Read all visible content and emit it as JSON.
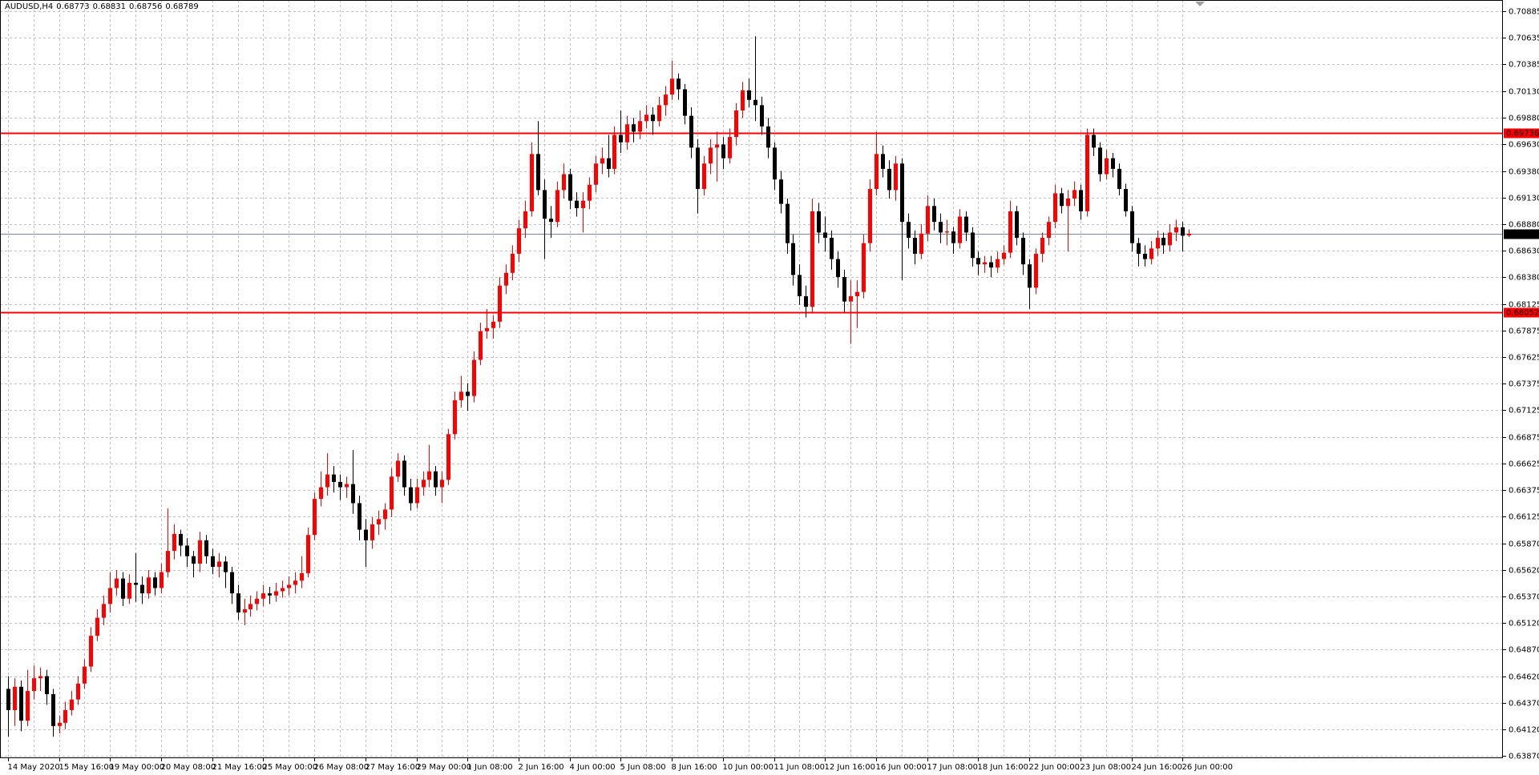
{
  "chart_data": {
    "type": "candlestick",
    "symbol": "AUDUSD,H4",
    "up_color": "#ff0000",
    "down_color": "#000000",
    "grid": true,
    "ylim": [
      0.63847,
      0.70991
    ],
    "yticks": [
      0.70885,
      0.70635,
      0.70385,
      {
        "value": 0.7013,
        "label": "0.70130"
      },
      {
        "value": 0.6988,
        "label": "0.69880"
      },
      {
        "value": 0.6963,
        "label": "0.69630"
      },
      {
        "value": 0.6938,
        "label": "0.69380"
      },
      {
        "value": 0.6913,
        "label": "0.69130"
      },
      {
        "value": 0.6888,
        "label": "0.68880"
      },
      {
        "value": 0.6863,
        "label": "0.68630"
      },
      {
        "value": 0.6838,
        "label": "0.68380"
      },
      0.68125,
      0.67875,
      0.67625,
      0.67375,
      0.67125,
      0.66875,
      0.66625,
      0.66375,
      0.66125,
      {
        "value": 0.6587,
        "label": "0.65870"
      },
      {
        "value": 0.6562,
        "label": "0.65620"
      },
      {
        "value": 0.6537,
        "label": "0.65370"
      },
      {
        "value": 0.6512,
        "label": "0.65120"
      },
      {
        "value": 0.6487,
        "label": "0.64870"
      },
      {
        "value": 0.6462,
        "label": "0.64620"
      },
      {
        "value": 0.6437,
        "label": "0.64370"
      },
      {
        "value": 0.6412,
        "label": "0.64120"
      },
      {
        "value": 0.6387,
        "label": "0.63870"
      }
    ],
    "hlines": [
      {
        "value": 0.69736,
        "color": "#ff0000"
      },
      {
        "value": 0.68052,
        "color": "#ff0000"
      }
    ],
    "last_price_color": "#778899",
    "categories": [
      "14 May 2020",
      null,
      null,
      null,
      null,
      null,
      null,
      null,
      "15 May 16:00",
      null,
      null,
      null,
      null,
      null,
      null,
      null,
      "19 May 00:00",
      null,
      null,
      null,
      null,
      null,
      null,
      null,
      "20 May 08:00",
      null,
      null,
      null,
      null,
      null,
      null,
      null,
      "21 May 16:00",
      null,
      null,
      null,
      null,
      null,
      null,
      null,
      "25 May 00:00",
      null,
      null,
      null,
      null,
      null,
      null,
      null,
      "26 May 08:00",
      null,
      null,
      null,
      null,
      null,
      null,
      null,
      "27 May 16:00",
      null,
      null,
      null,
      null,
      null,
      null,
      null,
      "29 May 00:00",
      null,
      null,
      null,
      null,
      null,
      null,
      null,
      "1 Jun 08:00",
      null,
      null,
      null,
      null,
      null,
      null,
      null,
      "2 Jun 16:00",
      null,
      null,
      null,
      null,
      null,
      null,
      null,
      "4 Jun 00:00",
      null,
      null,
      null,
      null,
      null,
      null,
      null,
      "5 Jun 08:00",
      null,
      null,
      null,
      null,
      null,
      null,
      null,
      "8 Jun 16:00",
      null,
      null,
      null,
      null,
      null,
      null,
      null,
      "10 Jun 00:00",
      null,
      null,
      null,
      null,
      null,
      null,
      null,
      "11 Jun 08:00",
      null,
      null,
      null,
      null,
      null,
      null,
      null,
      "12 Jun 16:00",
      null,
      null,
      null,
      null,
      null,
      null,
      null,
      "16 Jun 00:00",
      null,
      null,
      null,
      null,
      null,
      null,
      null,
      "17 Jun 08:00",
      null,
      null,
      null,
      null,
      null,
      null,
      null,
      "18 Jun 16:00",
      null,
      null,
      null,
      null,
      null,
      null,
      null,
      "22 Jun 00:00",
      null,
      null,
      null,
      null,
      null,
      null,
      null,
      "23 Jun 08:00",
      null,
      null,
      null,
      null,
      null,
      null,
      null,
      "24 Jun 16:00",
      null,
      null,
      null,
      null,
      null,
      null,
      null,
      "26 Jun 00:00",
      null
    ],
    "ohlc": [
      [
        0.645,
        0.6462,
        0.6405,
        0.643
      ],
      [
        0.643,
        0.646,
        0.6415,
        0.6452
      ],
      [
        0.6452,
        0.6458,
        0.641,
        0.642
      ],
      [
        0.642,
        0.6468,
        0.6415,
        0.6448
      ],
      [
        0.6448,
        0.6472,
        0.644,
        0.646
      ],
      [
        0.646,
        0.647,
        0.6448,
        0.6462
      ],
      [
        0.6462,
        0.6468,
        0.6435,
        0.6445
      ],
      [
        0.6445,
        0.645,
        0.6405,
        0.6415
      ],
      [
        0.6415,
        0.6425,
        0.6408,
        0.6418
      ],
      [
        0.6418,
        0.6438,
        0.6412,
        0.643
      ],
      [
        0.643,
        0.6448,
        0.6425,
        0.644
      ],
      [
        0.644,
        0.6462,
        0.6435,
        0.6455
      ],
      [
        0.6455,
        0.6478,
        0.645,
        0.6471
      ],
      [
        0.6471,
        0.6508,
        0.6466,
        0.65
      ],
      [
        0.65,
        0.6525,
        0.6495,
        0.6517
      ],
      [
        0.6517,
        0.6538,
        0.651,
        0.653
      ],
      [
        0.653,
        0.656,
        0.6522,
        0.6545
      ],
      [
        0.6545,
        0.6562,
        0.6538,
        0.6554
      ],
      [
        0.6554,
        0.656,
        0.6528,
        0.6535
      ],
      [
        0.6535,
        0.6558,
        0.653,
        0.655
      ],
      [
        0.655,
        0.6578,
        0.6532,
        0.6548
      ],
      [
        0.6548,
        0.6556,
        0.653,
        0.654
      ],
      [
        0.654,
        0.6562,
        0.6535,
        0.6555
      ],
      [
        0.6555,
        0.656,
        0.6538,
        0.6545
      ],
      [
        0.6545,
        0.6568,
        0.654,
        0.656
      ],
      [
        0.656,
        0.662,
        0.6555,
        0.658
      ],
      [
        0.658,
        0.6605,
        0.6572,
        0.6596
      ],
      [
        0.6596,
        0.66,
        0.6575,
        0.6585
      ],
      [
        0.6585,
        0.6592,
        0.6565,
        0.6575
      ],
      [
        0.6575,
        0.658,
        0.6555,
        0.6568
      ],
      [
        0.6568,
        0.6598,
        0.656,
        0.659
      ],
      [
        0.659,
        0.6595,
        0.6568,
        0.6575
      ],
      [
        0.6575,
        0.6582,
        0.6558,
        0.6565
      ],
      [
        0.6565,
        0.6578,
        0.6555,
        0.657
      ],
      [
        0.657,
        0.6575,
        0.6545,
        0.656
      ],
      [
        0.656,
        0.6565,
        0.653,
        0.654
      ],
      [
        0.654,
        0.6548,
        0.6515,
        0.6522
      ],
      [
        0.6522,
        0.6535,
        0.651,
        0.6525
      ],
      [
        0.6525,
        0.6538,
        0.6518,
        0.653
      ],
      [
        0.653,
        0.6542,
        0.6524,
        0.6535
      ],
      [
        0.6535,
        0.6548,
        0.6528,
        0.654
      ],
      [
        0.654,
        0.6546,
        0.653,
        0.6538
      ],
      [
        0.6538,
        0.655,
        0.6532,
        0.6542
      ],
      [
        0.6542,
        0.6552,
        0.6536,
        0.6545
      ],
      [
        0.6545,
        0.6556,
        0.6538,
        0.6548
      ],
      [
        0.6548,
        0.656,
        0.654,
        0.6552
      ],
      [
        0.6552,
        0.6575,
        0.6545,
        0.6559
      ],
      [
        0.6559,
        0.6602,
        0.6555,
        0.6595
      ],
      [
        0.6595,
        0.6635,
        0.659,
        0.6629
      ],
      [
        0.6629,
        0.6655,
        0.6622,
        0.664
      ],
      [
        0.664,
        0.6672,
        0.6632,
        0.6652
      ],
      [
        0.6652,
        0.666,
        0.6635,
        0.6645
      ],
      [
        0.6645,
        0.6652,
        0.6628,
        0.664
      ],
      [
        0.664,
        0.665,
        0.663,
        0.6643
      ],
      [
        0.6643,
        0.6675,
        0.6615,
        0.6625
      ],
      [
        0.6625,
        0.6632,
        0.659,
        0.66
      ],
      [
        0.66,
        0.661,
        0.6565,
        0.659
      ],
      [
        0.659,
        0.6612,
        0.6582,
        0.6605
      ],
      [
        0.6605,
        0.6618,
        0.6595,
        0.661
      ],
      [
        0.661,
        0.6625,
        0.66,
        0.6619
      ],
      [
        0.6619,
        0.6658,
        0.6612,
        0.665
      ],
      [
        0.665,
        0.6672,
        0.6645,
        0.6665
      ],
      [
        0.6665,
        0.667,
        0.6632,
        0.664
      ],
      [
        0.664,
        0.6648,
        0.6618,
        0.6625
      ],
      [
        0.6625,
        0.6648,
        0.662,
        0.664
      ],
      [
        0.664,
        0.6655,
        0.6632,
        0.6647
      ],
      [
        0.6647,
        0.668,
        0.664,
        0.6655
      ],
      [
        0.6655,
        0.666,
        0.6632,
        0.664
      ],
      [
        0.664,
        0.6655,
        0.6625,
        0.6647
      ],
      [
        0.6647,
        0.6695,
        0.6642,
        0.669
      ],
      [
        0.669,
        0.673,
        0.6685,
        0.6722
      ],
      [
        0.6722,
        0.6745,
        0.6715,
        0.673
      ],
      [
        0.673,
        0.6738,
        0.6712,
        0.6726
      ],
      [
        0.6726,
        0.6768,
        0.672,
        0.676
      ],
      [
        0.676,
        0.6795,
        0.6755,
        0.6787
      ],
      [
        0.6787,
        0.6808,
        0.678,
        0.679
      ],
      [
        0.679,
        0.6802,
        0.678,
        0.6796
      ],
      [
        0.6796,
        0.6838,
        0.679,
        0.683
      ],
      [
        0.683,
        0.685,
        0.6822,
        0.6842
      ],
      [
        0.6842,
        0.6868,
        0.6835,
        0.686
      ],
      [
        0.686,
        0.6892,
        0.6852,
        0.6884
      ],
      [
        0.6884,
        0.691,
        0.6875,
        0.69
      ],
      [
        0.69,
        0.6965,
        0.6895,
        0.6954
      ],
      [
        0.6954,
        0.6985,
        0.6915,
        0.692
      ],
      [
        0.692,
        0.693,
        0.6855,
        0.6893
      ],
      [
        0.6893,
        0.6905,
        0.6875,
        0.689
      ],
      [
        0.689,
        0.6928,
        0.6885,
        0.692
      ],
      [
        0.692,
        0.6945,
        0.6912,
        0.6935
      ],
      [
        0.6935,
        0.694,
        0.6902,
        0.691
      ],
      [
        0.691,
        0.6918,
        0.6895,
        0.6903
      ],
      [
        0.6903,
        0.6918,
        0.688,
        0.691
      ],
      [
        0.691,
        0.6932,
        0.6902,
        0.6925
      ],
      [
        0.6925,
        0.6952,
        0.6918,
        0.6945
      ],
      [
        0.6945,
        0.696,
        0.6935,
        0.695
      ],
      [
        0.695,
        0.6972,
        0.6932,
        0.694
      ],
      [
        0.694,
        0.698,
        0.6935,
        0.6972
      ],
      [
        0.6972,
        0.6995,
        0.6955,
        0.6965
      ],
      [
        0.6965,
        0.699,
        0.6958,
        0.6982
      ],
      [
        0.6982,
        0.6988,
        0.6965,
        0.6975
      ],
      [
        0.6975,
        0.6995,
        0.6968,
        0.6985
      ],
      [
        0.6985,
        0.7,
        0.6978,
        0.6991
      ],
      [
        0.6991,
        0.6998,
        0.6972,
        0.6985
      ],
      [
        0.6985,
        0.7008,
        0.698,
        0.7
      ],
      [
        0.7,
        0.7018,
        0.699,
        0.701
      ],
      [
        0.701,
        0.7042,
        0.7005,
        0.7025
      ],
      [
        0.7025,
        0.703,
        0.7005,
        0.7015
      ],
      [
        0.7015,
        0.702,
        0.6982,
        0.699
      ],
      [
        0.699,
        0.6998,
        0.695,
        0.696
      ],
      [
        0.696,
        0.6968,
        0.6898,
        0.6921
      ],
      [
        0.6921,
        0.6952,
        0.6915,
        0.6945
      ],
      [
        0.6945,
        0.6968,
        0.6935,
        0.696
      ],
      [
        0.696,
        0.6975,
        0.6928,
        0.6963
      ],
      [
        0.6963,
        0.697,
        0.694,
        0.695
      ],
      [
        0.695,
        0.6978,
        0.6945,
        0.697
      ],
      [
        0.697,
        0.7002,
        0.6962,
        0.6995
      ],
      [
        0.6995,
        0.7022,
        0.6988,
        0.7014
      ],
      [
        0.7014,
        0.7025,
        0.6998,
        0.7005
      ],
      [
        0.7005,
        0.7065,
        0.6985,
        0.7
      ],
      [
        0.7,
        0.7008,
        0.6972,
        0.698
      ],
      [
        0.698,
        0.6988,
        0.695,
        0.696
      ],
      [
        0.696,
        0.6965,
        0.692,
        0.693
      ],
      [
        0.693,
        0.6938,
        0.6898,
        0.6907
      ],
      [
        0.6907,
        0.6912,
        0.686,
        0.687
      ],
      [
        0.687,
        0.6878,
        0.683,
        0.684
      ],
      [
        0.684,
        0.685,
        0.6812,
        0.682
      ],
      [
        0.682,
        0.683,
        0.68,
        0.681
      ],
      [
        0.681,
        0.6912,
        0.6805,
        0.69
      ],
      [
        0.69,
        0.6908,
        0.687,
        0.688
      ],
      [
        0.688,
        0.6895,
        0.6862,
        0.6875
      ],
      [
        0.6875,
        0.6882,
        0.6845,
        0.6855
      ],
      [
        0.6855,
        0.6862,
        0.6828,
        0.6838
      ],
      [
        0.6838,
        0.6845,
        0.6805,
        0.6815
      ],
      [
        0.6815,
        0.6835,
        0.6775,
        0.682
      ],
      [
        0.682,
        0.6835,
        0.679,
        0.6824
      ],
      [
        0.6824,
        0.6878,
        0.6818,
        0.687
      ],
      [
        0.687,
        0.693,
        0.6862,
        0.6921
      ],
      [
        0.6921,
        0.6975,
        0.6915,
        0.6954
      ],
      [
        0.6954,
        0.6962,
        0.6932,
        0.694
      ],
      [
        0.694,
        0.6948,
        0.6912,
        0.692
      ],
      [
        0.692,
        0.6952,
        0.691,
        0.6945
      ],
      [
        0.6945,
        0.695,
        0.6835,
        0.689
      ],
      [
        0.689,
        0.6898,
        0.6865,
        0.6875
      ],
      [
        0.6875,
        0.6882,
        0.685,
        0.686
      ],
      [
        0.686,
        0.6888,
        0.6855,
        0.6879
      ],
      [
        0.6879,
        0.6915,
        0.6872,
        0.6905
      ],
      [
        0.6905,
        0.6912,
        0.6882,
        0.689
      ],
      [
        0.689,
        0.6898,
        0.687,
        0.688
      ],
      [
        0.688,
        0.6892,
        0.6868,
        0.6881
      ],
      [
        0.6881,
        0.6885,
        0.686,
        0.687
      ],
      [
        0.687,
        0.6902,
        0.6865,
        0.6895
      ],
      [
        0.6895,
        0.69,
        0.6872,
        0.688
      ],
      [
        0.688,
        0.6885,
        0.6848,
        0.6856
      ],
      [
        0.6856,
        0.6862,
        0.684,
        0.685
      ],
      [
        0.685,
        0.6858,
        0.6842,
        0.6852
      ],
      [
        0.6852,
        0.6858,
        0.6838,
        0.6847
      ],
      [
        0.6847,
        0.6862,
        0.6842,
        0.6855
      ],
      [
        0.6855,
        0.6868,
        0.685,
        0.6861
      ],
      [
        0.6861,
        0.691,
        0.6856,
        0.69
      ],
      [
        0.69,
        0.6905,
        0.6868,
        0.6875
      ],
      [
        0.6875,
        0.688,
        0.684,
        0.685
      ],
      [
        0.685,
        0.6855,
        0.6808,
        0.6828
      ],
      [
        0.6828,
        0.6865,
        0.6822,
        0.686
      ],
      [
        0.686,
        0.688,
        0.6852,
        0.6875
      ],
      [
        0.6875,
        0.6895,
        0.6868,
        0.689
      ],
      [
        0.689,
        0.6925,
        0.6884,
        0.6917
      ],
      [
        0.6917,
        0.6922,
        0.6898,
        0.6905
      ],
      [
        0.6905,
        0.692,
        0.6862,
        0.6912
      ],
      [
        0.6912,
        0.6928,
        0.6905,
        0.692
      ],
      [
        0.692,
        0.6925,
        0.6892,
        0.69
      ],
      [
        0.69,
        0.6978,
        0.6895,
        0.6972
      ],
      [
        0.6972,
        0.6978,
        0.6952,
        0.696
      ],
      [
        0.696,
        0.6965,
        0.6928,
        0.6935
      ],
      [
        0.6935,
        0.6958,
        0.693,
        0.695
      ],
      [
        0.695,
        0.6955,
        0.6932,
        0.694
      ],
      [
        0.694,
        0.6945,
        0.6915,
        0.6921
      ],
      [
        0.6921,
        0.6926,
        0.6895,
        0.69
      ],
      [
        0.69,
        0.6905,
        0.6862,
        0.687
      ],
      [
        0.687,
        0.6875,
        0.6848,
        0.686
      ],
      [
        0.686,
        0.6868,
        0.6848,
        0.6855
      ],
      [
        0.6855,
        0.6872,
        0.685,
        0.6865
      ],
      [
        0.6865,
        0.6882,
        0.6858,
        0.6875
      ],
      [
        0.6875,
        0.688,
        0.686,
        0.6868
      ],
      [
        0.6868,
        0.6888,
        0.6862,
        0.688
      ],
      [
        0.688,
        0.6892,
        0.6872,
        0.6885
      ],
      [
        0.6885,
        0.689,
        0.6862,
        0.6877
      ],
      [
        0.68773,
        0.68831,
        0.68756,
        0.68789
      ]
    ]
  }
}
